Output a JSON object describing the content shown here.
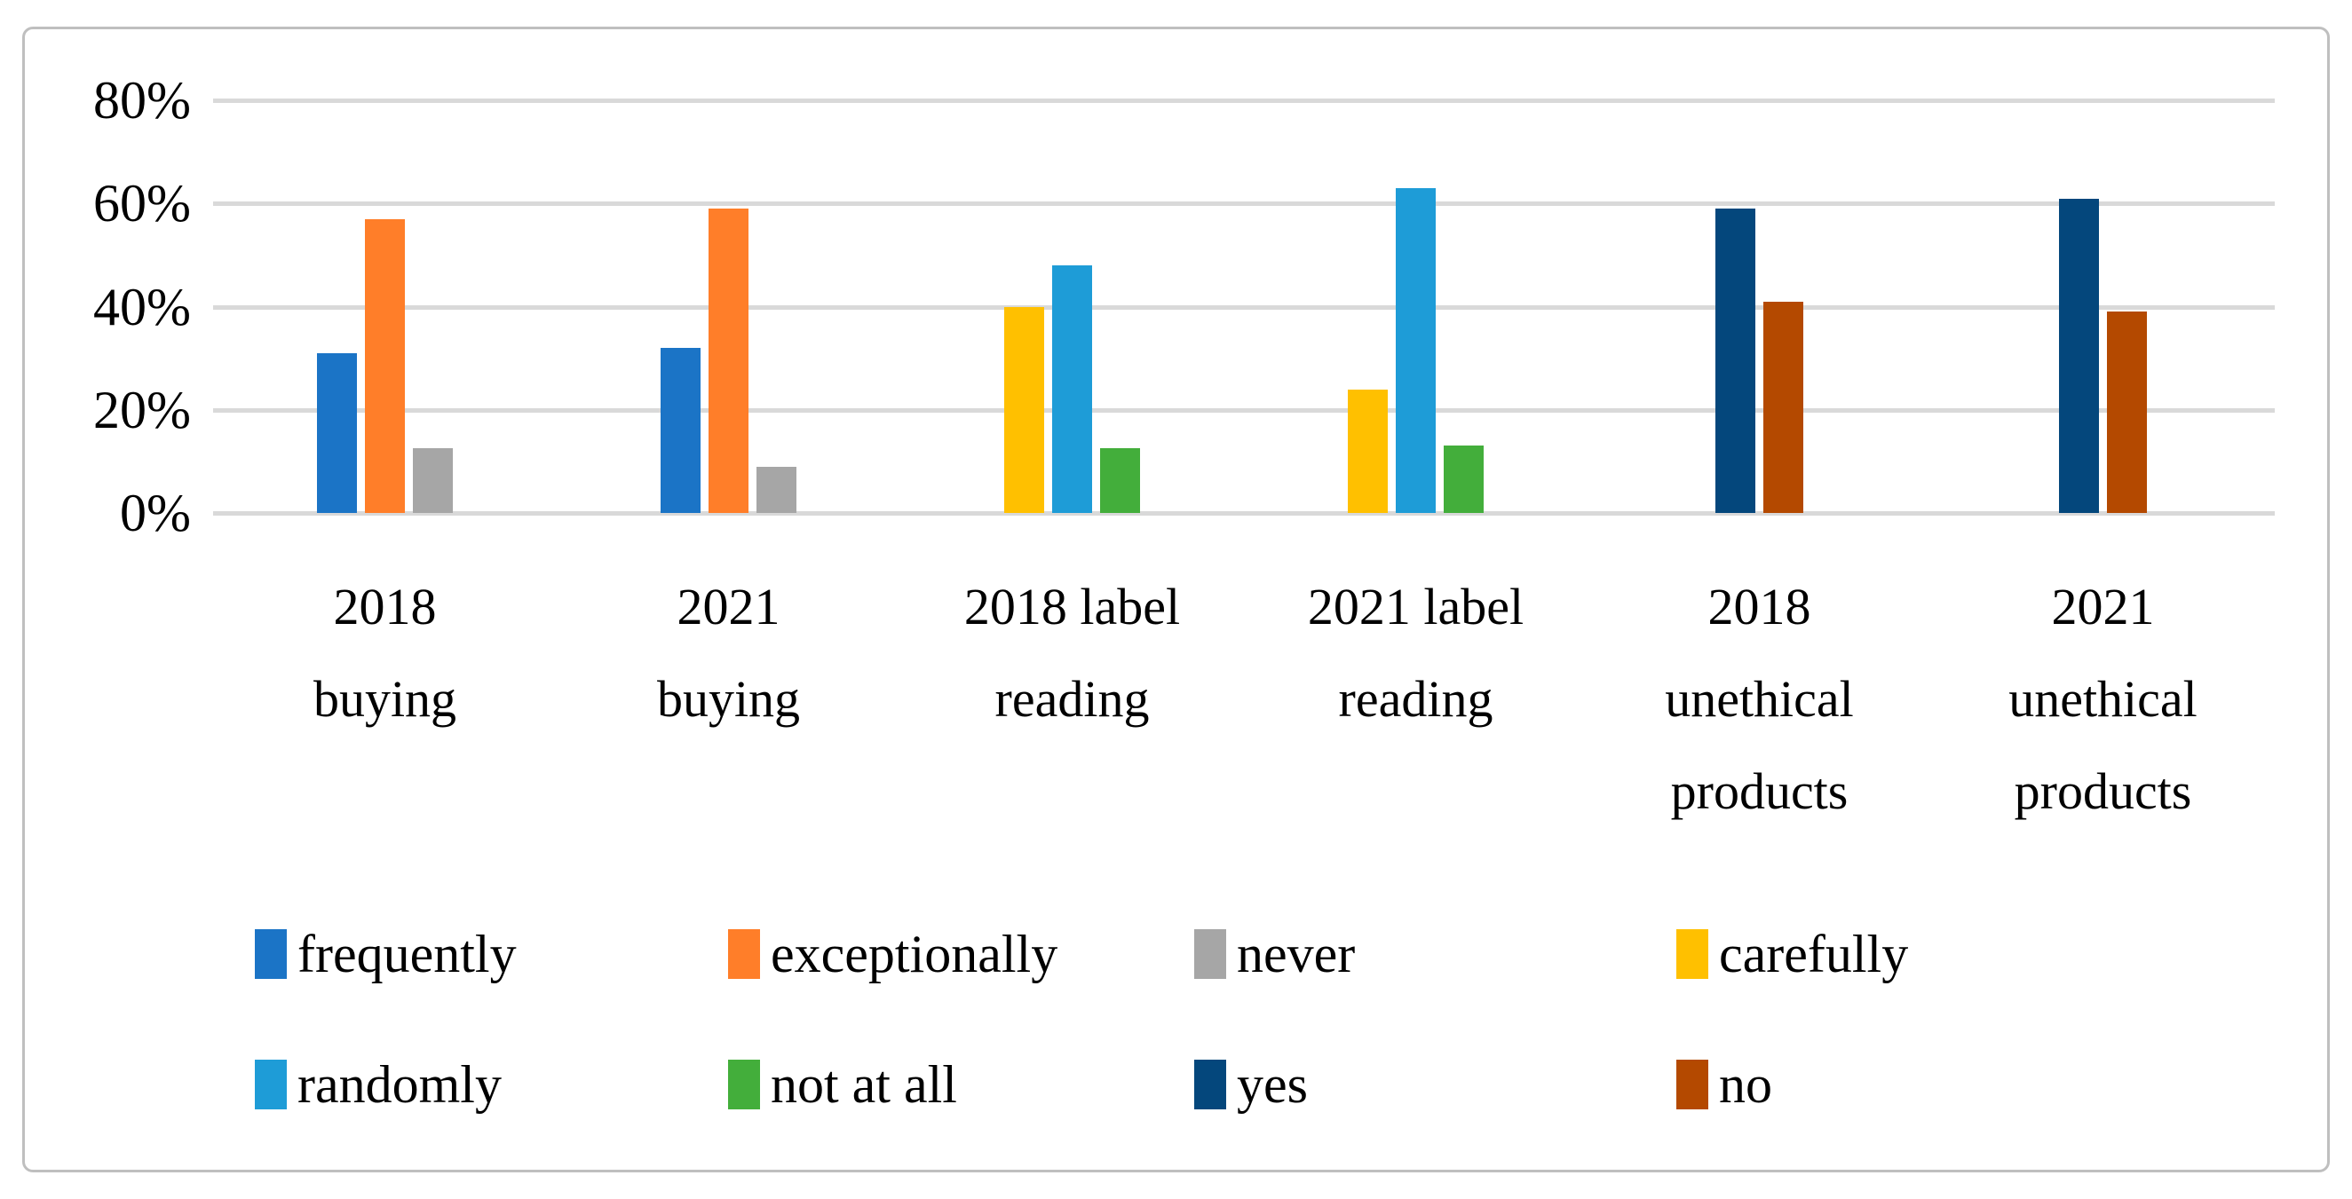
{
  "chart_data": {
    "type": "bar",
    "title": "",
    "xlabel": "",
    "ylabel": "",
    "categories": [
      "2018 buying",
      "2021 buying",
      "2018 label reading",
      "2021 label reading",
      "2018 unethical products",
      "2021 unethical products"
    ],
    "category_label_lines": [
      [
        "2018",
        "buying"
      ],
      [
        "2021",
        "buying"
      ],
      [
        "2018 label",
        "reading"
      ],
      [
        "2021 label",
        "reading"
      ],
      [
        "2018",
        "unethical",
        "products"
      ],
      [
        "2021",
        "unethical",
        "products"
      ]
    ],
    "series": [
      {
        "name": "frequently",
        "color": "#1b74c6",
        "values": [
          31,
          32,
          null,
          null,
          null,
          null
        ]
      },
      {
        "name": "exceptionally",
        "color": "#ff7e29",
        "values": [
          57,
          59,
          null,
          null,
          null,
          null
        ]
      },
      {
        "name": "never",
        "color": "#a6a6a6",
        "values": [
          12.5,
          9,
          null,
          null,
          null,
          null
        ]
      },
      {
        "name": "carefully",
        "color": "#ffc000",
        "values": [
          null,
          null,
          40,
          24,
          null,
          null
        ]
      },
      {
        "name": "randomly",
        "color": "#1e9cd7",
        "values": [
          null,
          null,
          48,
          63,
          null,
          null
        ]
      },
      {
        "name": "not at all",
        "color": "#43ae3b",
        "values": [
          null,
          null,
          12.5,
          13,
          null,
          null
        ]
      },
      {
        "name": "yes",
        "color": "#04477c",
        "values": [
          null,
          null,
          null,
          null,
          59,
          61
        ]
      },
      {
        "name": "no",
        "color": "#b44900",
        "values": [
          null,
          null,
          null,
          null,
          41,
          39
        ]
      }
    ],
    "y_ticks": [
      {
        "value": 80,
        "label": "80%"
      },
      {
        "value": 60,
        "label": "60%"
      },
      {
        "value": 40,
        "label": "40%"
      },
      {
        "value": 20,
        "label": "20%"
      },
      {
        "value": 0,
        "label": "0%"
      }
    ],
    "ylim": [
      0,
      90
    ],
    "grid": true,
    "gridline_color": "#d9d9d9",
    "legend_position": "bottom",
    "legend_rows": [
      [
        "frequently",
        "exceptionally",
        "never",
        "carefully"
      ],
      [
        "randomly",
        "not at all",
        "yes",
        "no"
      ]
    ]
  }
}
